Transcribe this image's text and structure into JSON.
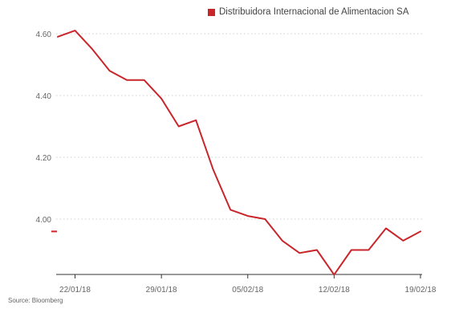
{
  "chart_data": {
    "type": "line",
    "title": "",
    "xlabel": "",
    "ylabel": "",
    "legend_position": "top-right",
    "grid": "horizontal dotted",
    "ylim": [
      3.82,
      4.64
    ],
    "y_ticks": [
      "4.60",
      "4.40",
      "4.20",
      "4.00"
    ],
    "y_tick_values": [
      4.6,
      4.4,
      4.2,
      4.0
    ],
    "x_ticks": [
      "22/01/18",
      "29/01/18",
      "05/02/18",
      "12/02/18",
      "19/02/18"
    ],
    "x_tick_indices": [
      1,
      6,
      11,
      16,
      21
    ],
    "x": [
      "19/01/18",
      "22/01/18",
      "23/01/18",
      "24/01/18",
      "25/01/18",
      "26/01/18",
      "29/01/18",
      "30/01/18",
      "31/01/18",
      "01/02/18",
      "02/02/18",
      "05/02/18",
      "06/02/18",
      "07/02/18",
      "08/02/18",
      "09/02/18",
      "12/02/18",
      "13/02/18",
      "14/02/18",
      "15/02/18",
      "16/02/18",
      "19/02/18"
    ],
    "series": [
      {
        "name": "Distribuidora Internacional de Alimentacion SA",
        "color": "#c8262b",
        "values": [
          4.59,
          4.61,
          4.55,
          4.48,
          4.45,
          4.45,
          4.39,
          4.3,
          4.32,
          4.16,
          4.03,
          4.01,
          4.0,
          3.93,
          3.89,
          3.9,
          3.82,
          3.9,
          3.9,
          3.97,
          3.93,
          3.96
        ]
      }
    ],
    "source": "Source: Bloomberg"
  },
  "legend": {
    "label": "Distribuidora Internacional de Alimentacion SA",
    "color": "#c8262b"
  },
  "source_text": "Source: Bloomberg"
}
